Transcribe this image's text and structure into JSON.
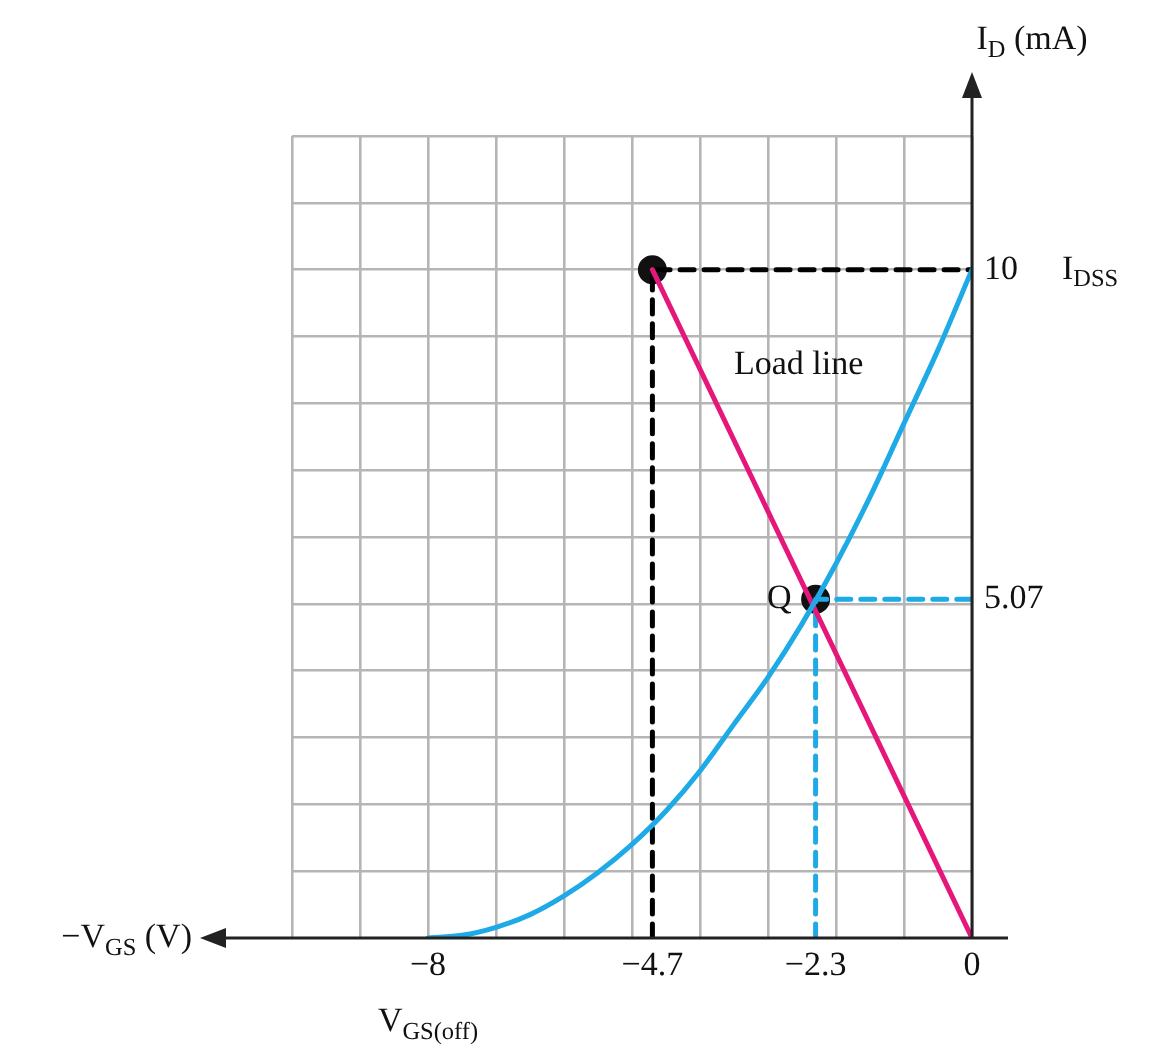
{
  "chart_data": {
    "type": "line",
    "xlabel": "−V$_{GS}$ (V)",
    "ylabel": "I$_{D}$ (mA)",
    "xlim": [
      -10,
      0
    ],
    "ylim": [
      0,
      12
    ],
    "xticks": [
      {
        "value": -10,
        "label": null
      },
      {
        "value": -9,
        "label": null
      },
      -8,
      {
        "value": -7,
        "label": null
      },
      {
        "value": -6,
        "label": null
      },
      {
        "value": -5,
        "label": null
      },
      -4.7,
      {
        "value": -4,
        "label": null
      },
      {
        "value": -3,
        "label": null
      },
      -2.3,
      {
        "value": -2,
        "label": null
      },
      {
        "value": -1,
        "label": null
      },
      0
    ],
    "yticks": [
      {
        "value": 1,
        "label": null
      },
      {
        "value": 2,
        "label": null
      },
      {
        "value": 3,
        "label": null
      },
      {
        "value": 4,
        "label": null
      },
      {
        "value": 5,
        "label": null
      },
      5.07,
      {
        "value": 6,
        "label": null
      },
      {
        "value": 7,
        "label": null
      },
      {
        "value": 8,
        "label": null
      },
      {
        "value": 9,
        "label": null
      },
      10,
      {
        "value": 11,
        "label": null
      },
      {
        "value": 12,
        "label": null
      }
    ],
    "grid": true,
    "series": [
      {
        "color": "#1eaae6",
        "x": [
          -8,
          -7.5,
          -7,
          -6.5,
          -6,
          -5.5,
          -5,
          -4.5,
          -4,
          -3.5,
          -3,
          -2.5,
          -2,
          -1.5,
          -1,
          -0.5,
          0
        ],
        "values": [
          0,
          0.04,
          0.16,
          0.35,
          0.63,
          0.98,
          1.4,
          1.9,
          2.5,
          3.2,
          3.9,
          4.7,
          5.6,
          6.6,
          7.7,
          8.8,
          10
        ],
        "marker": "none"
      },
      {
        "color": "#e6177a",
        "x": [
          -4.7,
          0
        ],
        "values": [
          10,
          0
        ],
        "marker": "none"
      },
      {
        "color": "#000000",
        "x": [
          -4.7,
          -4.7,
          0
        ],
        "values": [
          0,
          10,
          10
        ],
        "marker": "none",
        "line_style": "dashed"
      },
      {
        "color": "#1eaae6",
        "x": [
          -2.3,
          -2.3,
          0
        ],
        "values": [
          0,
          5.07,
          5.07
        ],
        "marker": "none",
        "line_style": "dashed"
      },
      {
        "type": "scatter",
        "color": "#111111",
        "x": [
          -4.7,
          -2.3
        ],
        "values": [
          10,
          5.07
        ],
        "marker": "circle"
      }
    ],
    "annotations": [
      "Load line",
      {
        "text": "Q",
        "x": -2.3,
        "y": 5.07
      },
      {
        "text": "I$_{DSS}$",
        "x": 0,
        "y": 10
      },
      {
        "text": "V$_{GS(off)}$",
        "x": -8,
        "y": 0
      }
    ]
  }
}
